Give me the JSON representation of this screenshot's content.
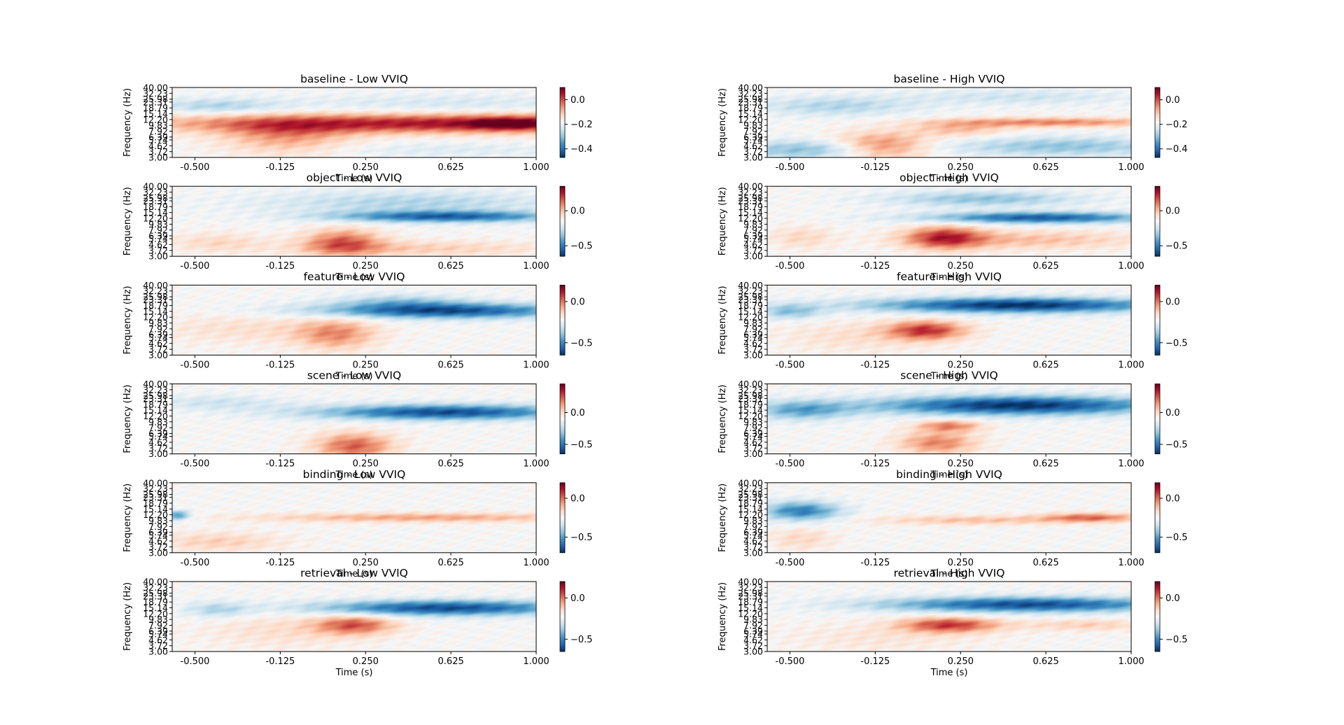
{
  "chart_data": {
    "type": "heatmap",
    "layout": "6 rows x 2 columns",
    "x_tick_labels": [
      "-0.500",
      "-0.125",
      "0.250",
      "0.625",
      "1.000"
    ],
    "x_ticks": [
      -0.5,
      -0.125,
      0.25,
      0.625,
      1.0
    ],
    "xlim": [
      -0.6,
      1.0
    ],
    "y_tick_labels": [
      "3.00",
      "3.72",
      "4.62",
      "5.74",
      "6.39",
      "7.92",
      "9.83",
      "12.20",
      "15.14",
      "18.79",
      "23.31",
      "25.98",
      "32.23",
      "40.00"
    ],
    "y_scale": "log",
    "ylim": [
      3.0,
      40.0
    ],
    "xlabel": "Time (s)",
    "ylabel": "Frequency (Hz)",
    "colormap": "RdBu_r",
    "colors": {
      "positive": "#67001f",
      "zero": "#f7f7f7",
      "negative": "#053061"
    },
    "panels": [
      {
        "title": "baseline - Low VVIQ",
        "condition": "baseline",
        "group": "Low VVIQ",
        "colorbar_ticks": [
          0.0,
          -0.2,
          -0.4
        ],
        "colorbar_tick_labels": [
          "0.0",
          "−0.2",
          "−0.4"
        ],
        "colorbar_range": [
          -0.47,
          0.1
        ],
        "features": [
          {
            "t": 0.65,
            "f": 10.5,
            "st": 0.9,
            "sf": 0.25,
            "a": 0.42
          },
          {
            "t": 0.88,
            "f": 10.5,
            "st": 0.12,
            "sf": 0.15,
            "a": 0.2
          },
          {
            "t": -0.1,
            "f": 6.5,
            "st": 0.2,
            "sf": 0.45,
            "a": 0.2
          },
          {
            "t": -0.4,
            "f": 20,
            "st": 0.2,
            "sf": 0.2,
            "a": -0.15
          },
          {
            "t": 0.6,
            "f": 22,
            "st": 0.5,
            "sf": 0.25,
            "a": -0.08
          },
          {
            "t": 0.6,
            "f": 4.0,
            "st": 0.4,
            "sf": 0.2,
            "a": -0.06
          }
        ]
      },
      {
        "title": "baseline - High VVIQ",
        "condition": "baseline",
        "group": "High VVIQ",
        "colorbar_ticks": [
          0.0,
          -0.2,
          -0.4
        ],
        "colorbar_tick_labels": [
          "0.0",
          "−0.2",
          "−0.4"
        ],
        "colorbar_range": [
          -0.47,
          0.1
        ],
        "features": [
          {
            "t": -0.1,
            "f": 4.5,
            "st": 0.15,
            "sf": 0.35,
            "a": 0.3
          },
          {
            "t": 0.65,
            "f": 11,
            "st": 0.35,
            "sf": 0.12,
            "a": 0.25
          },
          {
            "t": 0.25,
            "f": 8.5,
            "st": 0.15,
            "sf": 0.2,
            "a": 0.15
          },
          {
            "t": -0.4,
            "f": 4.0,
            "st": 0.25,
            "sf": 0.25,
            "a": -0.22
          },
          {
            "t": 0.7,
            "f": 4.5,
            "st": 0.35,
            "sf": 0.25,
            "a": -0.2
          },
          {
            "t": -0.3,
            "f": 20,
            "st": 0.25,
            "sf": 0.25,
            "a": -0.15
          },
          {
            "t": 0.5,
            "f": 28,
            "st": 0.35,
            "sf": 0.2,
            "a": -0.1
          }
        ]
      },
      {
        "title": "object - Low VVIQ",
        "condition": "object",
        "group": "Low VVIQ",
        "colorbar_ticks": [
          0.0,
          -0.5
        ],
        "colorbar_tick_labels": [
          "0.0",
          "−0.5"
        ],
        "colorbar_range": [
          -0.65,
          0.35
        ],
        "features": [
          {
            "t": 0.15,
            "f": 5.0,
            "st": 0.12,
            "sf": 0.35,
            "a": 0.3
          },
          {
            "t": 0.5,
            "f": 4.0,
            "st": 0.4,
            "sf": 0.2,
            "a": 0.12
          },
          {
            "t": -0.4,
            "f": 5.0,
            "st": 0.15,
            "sf": 0.25,
            "a": 0.1
          },
          {
            "t": 0.6,
            "f": 13,
            "st": 0.35,
            "sf": 0.15,
            "a": -0.4
          },
          {
            "t": 0.45,
            "f": 22,
            "st": 0.45,
            "sf": 0.3,
            "a": -0.15
          }
        ]
      },
      {
        "title": "object - High VVIQ",
        "condition": "object",
        "group": "High VVIQ",
        "colorbar_ticks": [
          0.0,
          -0.5
        ],
        "colorbar_tick_labels": [
          "0.0",
          "−0.5"
        ],
        "colorbar_range": [
          -0.65,
          0.35
        ],
        "features": [
          {
            "t": 0.18,
            "f": 6.0,
            "st": 0.12,
            "sf": 0.3,
            "a": 0.35
          },
          {
            "t": 0.55,
            "f": 5.5,
            "st": 0.35,
            "sf": 0.25,
            "a": 0.15
          },
          {
            "t": -0.45,
            "f": 6.0,
            "st": 0.1,
            "sf": 0.3,
            "a": 0.1
          },
          {
            "t": 0.6,
            "f": 12.5,
            "st": 0.35,
            "sf": 0.15,
            "a": -0.42
          },
          {
            "t": 0.35,
            "f": 25,
            "st": 0.3,
            "sf": 0.2,
            "a": -0.2
          }
        ]
      },
      {
        "title": "feature - Low VVIQ",
        "condition": "feature",
        "group": "Low VVIQ",
        "colorbar_ticks": [
          0.0,
          -0.5
        ],
        "colorbar_tick_labels": [
          "0.0",
          "−0.5"
        ],
        "colorbar_range": [
          -0.65,
          0.2
        ],
        "features": [
          {
            "t": 0.12,
            "f": 6.5,
            "st": 0.12,
            "sf": 0.4,
            "a": 0.22
          },
          {
            "t": -0.25,
            "f": 8.0,
            "st": 0.3,
            "sf": 0.4,
            "a": 0.08
          },
          {
            "t": 0.6,
            "f": 15.5,
            "st": 0.4,
            "sf": 0.2,
            "a": -0.45
          },
          {
            "t": 0.4,
            "f": 22,
            "st": 0.2,
            "sf": 0.2,
            "a": -0.15
          }
        ]
      },
      {
        "title": "feature - High VVIQ",
        "condition": "feature",
        "group": "High VVIQ",
        "colorbar_ticks": [
          0.0,
          -0.5
        ],
        "colorbar_tick_labels": [
          "0.0",
          "−0.5"
        ],
        "colorbar_range": [
          -0.65,
          0.2
        ],
        "features": [
          {
            "t": 0.1,
            "f": 7.5,
            "st": 0.12,
            "sf": 0.25,
            "a": 0.35
          },
          {
            "t": -0.2,
            "f": 6.0,
            "st": 0.25,
            "sf": 0.4,
            "a": 0.08
          },
          {
            "t": 0.5,
            "f": 19,
            "st": 0.45,
            "sf": 0.2,
            "a": -0.5
          },
          {
            "t": -0.5,
            "f": 15,
            "st": 0.1,
            "sf": 0.2,
            "a": -0.2
          }
        ]
      },
      {
        "title": "scene - Low VVIQ",
        "condition": "scene",
        "group": "Low VVIQ",
        "colorbar_ticks": [
          0.0,
          -0.5
        ],
        "colorbar_tick_labels": [
          "0.0",
          "−0.5"
        ],
        "colorbar_range": [
          -0.65,
          0.45
        ],
        "features": [
          {
            "t": 0.2,
            "f": 4.0,
            "st": 0.12,
            "sf": 0.35,
            "a": 0.3
          },
          {
            "t": 0.6,
            "f": 14,
            "st": 0.4,
            "sf": 0.2,
            "a": -0.45
          },
          {
            "t": -0.4,
            "f": 20,
            "st": 0.2,
            "sf": 0.2,
            "a": -0.1
          }
        ]
      },
      {
        "title": "scene - High VVIQ",
        "condition": "scene",
        "group": "High VVIQ",
        "colorbar_ticks": [
          0.0,
          -0.5
        ],
        "colorbar_tick_labels": [
          "0.0",
          "−0.5"
        ],
        "colorbar_range": [
          -0.65,
          0.45
        ],
        "features": [
          {
            "t": 0.15,
            "f": 4.5,
            "st": 0.12,
            "sf": 0.3,
            "a": 0.25
          },
          {
            "t": 0.2,
            "f": 8.5,
            "st": 0.1,
            "sf": 0.15,
            "a": 0.25
          },
          {
            "t": 0.5,
            "f": 18,
            "st": 0.45,
            "sf": 0.25,
            "a": -0.5
          },
          {
            "t": -0.45,
            "f": 15,
            "st": 0.15,
            "sf": 0.25,
            "a": -0.25
          }
        ]
      },
      {
        "title": "binding - Low VVIQ",
        "condition": "binding",
        "group": "Low VVIQ",
        "colorbar_ticks": [
          0.0,
          -0.5
        ],
        "colorbar_tick_labels": [
          "0.0",
          "−0.5"
        ],
        "colorbar_range": [
          -0.7,
          0.2
        ],
        "features": [
          {
            "t": 0.5,
            "f": 11,
            "st": 0.5,
            "sf": 0.12,
            "a": 0.2
          },
          {
            "t": -0.4,
            "f": 4.5,
            "st": 0.2,
            "sf": 0.25,
            "a": 0.12
          },
          {
            "t": -0.58,
            "f": 12,
            "st": 0.04,
            "sf": 0.12,
            "a": -0.3
          }
        ]
      },
      {
        "title": "binding - High VVIQ",
        "condition": "binding",
        "group": "High VVIQ",
        "colorbar_ticks": [
          0.0,
          -0.5
        ],
        "colorbar_tick_labels": [
          "0.0",
          "−0.5"
        ],
        "colorbar_range": [
          -0.7,
          0.2
        ],
        "features": [
          {
            "t": 0.82,
            "f": 11,
            "st": 0.15,
            "sf": 0.12,
            "a": 0.28
          },
          {
            "t": 0.3,
            "f": 10,
            "st": 0.3,
            "sf": 0.12,
            "a": 0.15
          },
          {
            "t": -0.45,
            "f": 5.0,
            "st": 0.1,
            "sf": 0.3,
            "a": 0.1
          },
          {
            "t": -0.45,
            "f": 14,
            "st": 0.12,
            "sf": 0.25,
            "a": -0.35
          }
        ]
      },
      {
        "title": "retrieval - Low VVIQ",
        "condition": "retrieval",
        "group": "Low VVIQ",
        "colorbar_ticks": [
          0.0,
          -0.5
        ],
        "colorbar_tick_labels": [
          "0.0",
          "−0.5"
        ],
        "colorbar_range": [
          -0.65,
          0.2
        ],
        "features": [
          {
            "t": 0.2,
            "f": 8.0,
            "st": 0.12,
            "sf": 0.25,
            "a": 0.3
          },
          {
            "t": -0.1,
            "f": 6.5,
            "st": 0.25,
            "sf": 0.45,
            "a": 0.08
          },
          {
            "t": 0.6,
            "f": 15,
            "st": 0.4,
            "sf": 0.2,
            "a": -0.45
          },
          {
            "t": -0.4,
            "f": 14,
            "st": 0.1,
            "sf": 0.2,
            "a": -0.15
          }
        ]
      },
      {
        "title": "retrieval - High VVIQ",
        "condition": "retrieval",
        "group": "High VVIQ",
        "colorbar_ticks": [
          0.0,
          -0.5
        ],
        "colorbar_tick_labels": [
          "0.0",
          "−0.5"
        ],
        "colorbar_range": [
          -0.65,
          0.2
        ],
        "features": [
          {
            "t": 0.2,
            "f": 8.0,
            "st": 0.15,
            "sf": 0.2,
            "a": 0.35
          },
          {
            "t": 0.8,
            "f": 8.0,
            "st": 0.2,
            "sf": 0.15,
            "a": 0.12
          },
          {
            "t": -0.1,
            "f": 5.0,
            "st": 0.3,
            "sf": 0.4,
            "a": 0.06
          },
          {
            "t": 0.55,
            "f": 17,
            "st": 0.45,
            "sf": 0.2,
            "a": -0.45
          }
        ]
      }
    ]
  }
}
